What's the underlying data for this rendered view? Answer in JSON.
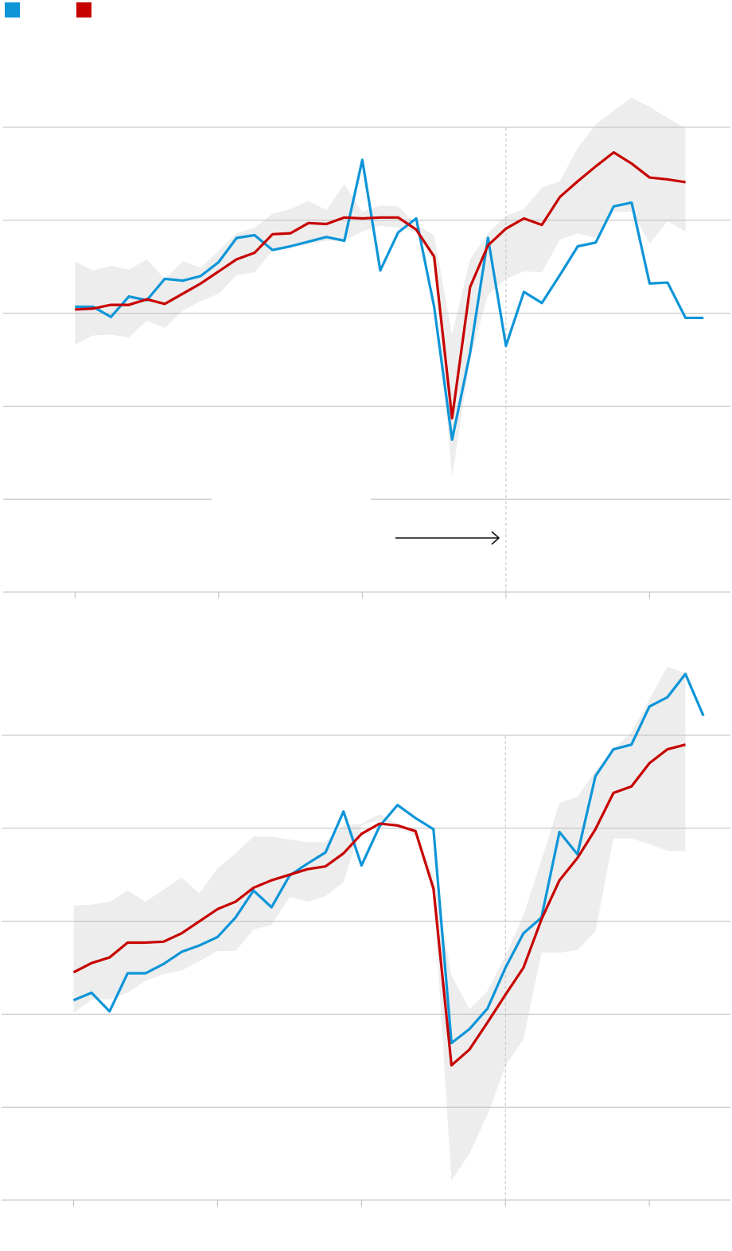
{
  "chart_data": [
    {
      "type": "line",
      "x": [
        0,
        1,
        2,
        3,
        4,
        5,
        6,
        7,
        8,
        9,
        10,
        11,
        12,
        13,
        14,
        15,
        16,
        17,
        18,
        19,
        20,
        21,
        22,
        23,
        24,
        25,
        26,
        27,
        28,
        29,
        30,
        31,
        32,
        33,
        34,
        35
      ],
      "xlim": [
        -4,
        36.5
      ],
      "xticks": [
        0,
        8,
        16,
        24,
        32
      ],
      "vline": 24,
      "ylim": [
        0,
        5.5
      ],
      "yticks": [
        0,
        1,
        2,
        3,
        4,
        5
      ],
      "grid": true,
      "band": {
        "color": "#ededed",
        "upper": [
          3.56,
          3.46,
          3.51,
          3.47,
          3.58,
          3.37,
          3.56,
          3.49,
          3.67,
          3.86,
          3.92,
          4.07,
          4.12,
          4.21,
          4.11,
          4.39,
          4.09,
          4.16,
          4.15,
          3.95,
          3.84,
          2.77,
          3.58,
          3.86,
          4.05,
          4.12,
          4.35,
          4.42,
          4.78,
          5.03,
          5.18,
          5.32,
          5.22,
          5.1,
          4.99,
          null
        ],
        "lower": [
          2.66,
          2.76,
          2.77,
          2.74,
          2.92,
          2.84,
          3.03,
          3.13,
          3.21,
          3.41,
          3.44,
          3.67,
          3.71,
          3.74,
          3.78,
          3.78,
          3.88,
          3.94,
          3.92,
          3.88,
          3.54,
          1.23,
          2.51,
          3.2,
          3.37,
          3.45,
          3.44,
          3.79,
          3.86,
          3.81,
          4.09,
          4.09,
          3.75,
          3.99,
          3.88,
          null
        ]
      },
      "series": [
        {
          "color": "#0d95d8",
          "values": [
            3.07,
            3.07,
            2.96,
            3.18,
            3.14,
            3.37,
            3.35,
            3.4,
            3.55,
            3.81,
            3.84,
            3.68,
            3.72,
            3.77,
            3.82,
            3.78,
            4.65,
            3.46,
            3.87,
            4.02,
            3.07,
            1.64,
            2.57,
            3.81,
            2.65,
            3.23,
            3.11,
            3.41,
            3.72,
            3.76,
            4.15,
            4.19,
            3.32,
            3.33,
            2.95,
            2.95
          ]
        },
        {
          "color": "#c70000",
          "values": [
            3.04,
            3.05,
            3.09,
            3.09,
            3.15,
            3.1,
            3.21,
            3.32,
            3.45,
            3.58,
            3.65,
            3.85,
            3.86,
            3.97,
            3.96,
            4.03,
            4.02,
            4.03,
            4.03,
            3.9,
            3.61,
            1.87,
            3.28,
            3.73,
            3.91,
            4.02,
            3.95,
            4.25,
            4.42,
            4.58,
            4.73,
            4.61,
            4.46,
            4.44,
            4.41,
            null
          ]
        }
      ]
    },
    {
      "type": "line",
      "x": [
        0,
        1,
        2,
        3,
        4,
        5,
        6,
        7,
        8,
        9,
        10,
        11,
        12,
        13,
        14,
        15,
        16,
        17,
        18,
        19,
        20,
        21,
        22,
        23,
        24,
        25,
        26,
        27,
        28,
        29,
        30,
        31,
        32,
        33,
        34,
        35
      ],
      "xlim": [
        -4,
        36.5
      ],
      "xticks": [
        0,
        8,
        16,
        24,
        32
      ],
      "vline": 24,
      "ylim": [
        0,
        6
      ],
      "yticks": [
        0,
        1,
        2,
        3,
        4,
        5
      ],
      "grid": true,
      "band": {
        "color": "#ededed",
        "upper": [
          3.17,
          3.18,
          3.21,
          3.33,
          3.21,
          3.34,
          3.47,
          3.3,
          3.57,
          3.73,
          3.91,
          3.91,
          3.88,
          3.85,
          3.85,
          4.03,
          4.05,
          4.15,
          4.05,
          3.96,
          3.49,
          2.42,
          2.05,
          2.25,
          2.63,
          3.06,
          3.66,
          4.27,
          4.34,
          4.62,
          4.85,
          5.03,
          5.39,
          5.74,
          5.67,
          null
        ],
        "lower": [
          2.01,
          2.16,
          2.16,
          2.23,
          2.36,
          2.43,
          2.47,
          2.57,
          2.68,
          2.68,
          2.91,
          2.96,
          3.26,
          3.21,
          3.27,
          3.42,
          4.03,
          4.09,
          4.03,
          3.91,
          3.32,
          0.21,
          0.5,
          0.92,
          1.44,
          1.73,
          2.66,
          2.66,
          2.69,
          2.89,
          3.89,
          3.89,
          3.83,
          3.76,
          3.75,
          null
        ]
      },
      "series": [
        {
          "color": "#0d95d8",
          "values": [
            2.15,
            2.23,
            2.03,
            2.44,
            2.44,
            2.54,
            2.67,
            2.74,
            2.83,
            3.04,
            3.33,
            3.15,
            3.49,
            3.62,
            3.74,
            4.18,
            3.6,
            4.02,
            4.25,
            4.11,
            3.99,
            1.69,
            1.84,
            2.06,
            2.5,
            2.87,
            3.04,
            3.96,
            3.72,
            4.56,
            4.85,
            4.9,
            5.31,
            5.41,
            5.66,
            5.21
          ]
        },
        {
          "color": "#c70000",
          "values": [
            2.45,
            2.55,
            2.61,
            2.77,
            2.77,
            2.78,
            2.87,
            3.0,
            3.13,
            3.21,
            3.36,
            3.44,
            3.5,
            3.56,
            3.59,
            3.73,
            3.94,
            4.05,
            4.03,
            3.97,
            3.35,
            1.45,
            1.62,
            1.91,
            2.21,
            2.5,
            3.02,
            3.44,
            3.68,
            3.99,
            4.38,
            4.45,
            4.7,
            4.85,
            4.9,
            null
          ]
        }
      ]
    }
  ]
}
